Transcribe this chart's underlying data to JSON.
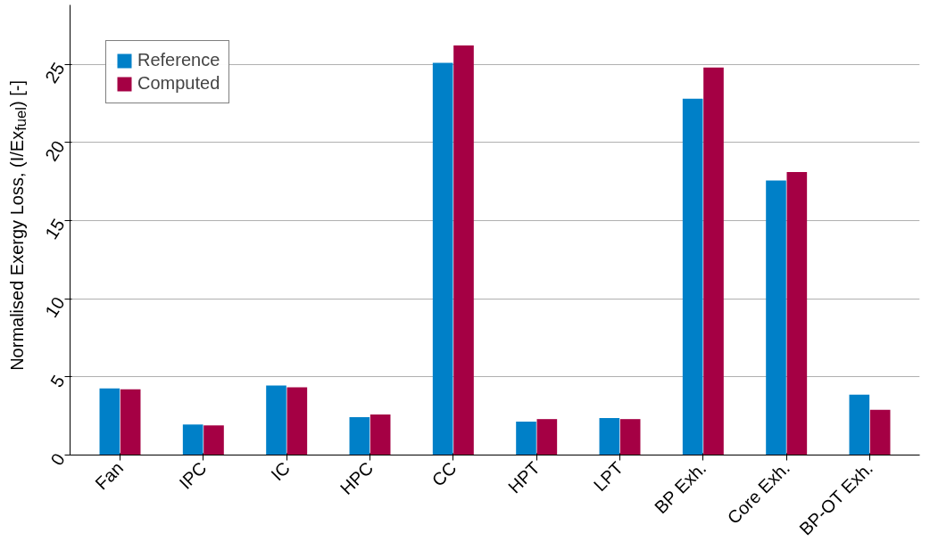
{
  "chart_data": {
    "type": "bar",
    "ylabel": "Normalised Exergy Loss, (I/Ex$_{fuel}$) [-]",
    "categories": [
      "Fan",
      "IPC",
      "IC",
      "HPC",
      "CC",
      "HPT",
      "LPT",
      "BP Exh.",
      "Core Exh.",
      "BP-OT Exh."
    ],
    "series": [
      {
        "name": "Reference",
        "color": "#0080c8",
        "values": [
          4.27,
          1.96,
          4.45,
          2.43,
          25.1,
          2.14,
          2.37,
          22.8,
          17.57,
          3.86
        ]
      },
      {
        "name": "Computed",
        "color": "#a50044",
        "values": [
          4.2,
          1.9,
          4.33,
          2.6,
          26.2,
          2.3,
          2.3,
          24.8,
          18.1,
          2.9
        ]
      }
    ],
    "ylim": [
      0,
      28.8
    ],
    "yticks": [
      0,
      5,
      10,
      15,
      20,
      25
    ],
    "grid": "y",
    "legend": "top left"
  }
}
